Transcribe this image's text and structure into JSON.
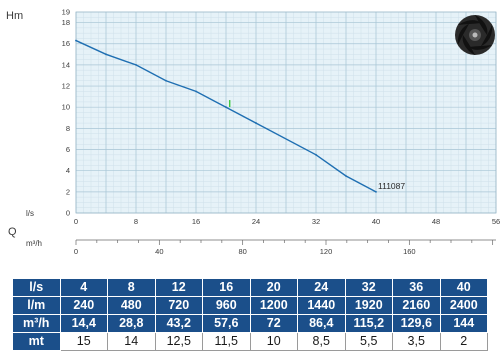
{
  "chart_data": {
    "type": "line",
    "ylabel": "Hm",
    "ylim": [
      0,
      19
    ],
    "yticks": [
      0,
      2,
      4,
      6,
      8,
      10,
      12,
      14,
      16,
      18,
      19
    ],
    "x_ls_label": "l/s",
    "x_q_label": "Q",
    "x_m3h_label": "m³/h",
    "xlim": [
      0,
      56
    ],
    "xticks_ls": [
      0,
      8,
      16,
      24,
      32,
      40,
      48,
      56
    ],
    "xticks_ls_labels": [
      "0",
      "8",
      "16",
      "24",
      "32",
      "40",
      "48",
      "56"
    ],
    "xticks_m3h": [
      0,
      40,
      80,
      120,
      160
    ],
    "series": [
      {
        "name": "111087",
        "color": "#1f6fb2",
        "x": [
          0,
          4,
          8,
          12,
          16,
          20,
          24,
          32,
          36,
          40
        ],
        "y": [
          16.3,
          15,
          14,
          12.5,
          11.5,
          10,
          8.5,
          5.5,
          3.5,
          2
        ]
      }
    ],
    "marker": {
      "x": 20.5,
      "y": 10.3,
      "color": "#22c322"
    },
    "grid": true
  },
  "table": {
    "rows": [
      {
        "label": "l/s",
        "kind": "hd",
        "values": [
          "4",
          "8",
          "12",
          "16",
          "20",
          "24",
          "32",
          "36",
          "40"
        ]
      },
      {
        "label": "l/m",
        "kind": "hd",
        "values": [
          "240",
          "480",
          "720",
          "960",
          "1200",
          "1440",
          "1920",
          "2160",
          "2400"
        ]
      },
      {
        "label": "m³/h",
        "kind": "hd",
        "values": [
          "14,4",
          "28,8",
          "43,2",
          "57,6",
          "72",
          "86,4",
          "115,2",
          "129,6",
          "144"
        ]
      },
      {
        "label": "mt",
        "kind": "plain",
        "values": [
          "15",
          "14",
          "12,5",
          "11,5",
          "10",
          "8,5",
          "5,5",
          "3,5",
          "2"
        ]
      }
    ]
  },
  "icons": {
    "impeller": "impeller-icon"
  }
}
